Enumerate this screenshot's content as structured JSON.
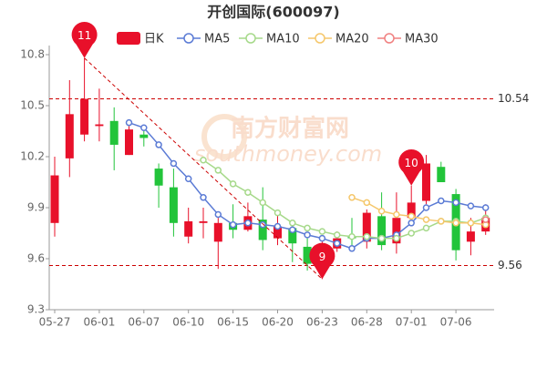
{
  "chart_data": {
    "type": "candlestick",
    "title": "开创国际(600097)",
    "watermark": [
      "南方财富网",
      "southmoney.com"
    ],
    "categories": [
      "05-27",
      null,
      null,
      "06-01",
      null,
      null,
      "06-07",
      null,
      null,
      "06-10",
      null,
      null,
      "06-15",
      null,
      null,
      "06-20",
      null,
      null,
      "06-23",
      null,
      null,
      "06-28",
      null,
      null,
      "07-01",
      null,
      null,
      "07-06",
      null,
      null
    ],
    "series": [
      {
        "name": "日K",
        "type": "candlestick",
        "up_color": "#e8102a",
        "down_color": "#22c43a",
        "open": [
          9.81,
          10.19,
          10.33,
          10.38,
          10.41,
          10.21,
          10.33,
          10.13,
          10.02,
          9.73,
          9.81,
          9.7,
          9.81,
          9.77,
          9.83,
          9.72,
          9.78,
          9.67,
          9.59,
          9.66,
          9.73,
          9.7,
          9.85,
          9.69,
          9.84,
          9.94,
          10.14,
          9.98,
          9.7,
          9.76
        ],
        "high": [
          10.2,
          10.65,
          10.78,
          10.6,
          10.49,
          10.38,
          10.37,
          10.16,
          10.13,
          9.9,
          9.9,
          9.84,
          9.92,
          9.93,
          10.02,
          9.86,
          9.81,
          9.72,
          9.7,
          9.76,
          9.84,
          9.89,
          9.99,
          9.99,
          10.03,
          10.21,
          10.17,
          10.01,
          9.84,
          9.92
        ],
        "low": [
          9.73,
          10.08,
          10.29,
          10.29,
          10.12,
          10.21,
          10.26,
          9.9,
          9.73,
          9.69,
          9.72,
          9.54,
          9.72,
          9.76,
          9.65,
          9.68,
          9.58,
          9.53,
          9.48,
          9.64,
          9.65,
          9.66,
          9.65,
          9.63,
          9.79,
          9.92,
          10.05,
          9.59,
          9.62,
          9.74
        ],
        "close": [
          10.09,
          10.45,
          10.54,
          10.39,
          10.27,
          10.36,
          10.31,
          10.03,
          9.81,
          9.82,
          9.82,
          9.81,
          9.77,
          9.85,
          9.71,
          9.79,
          9.69,
          9.57,
          9.66,
          9.72,
          9.72,
          9.87,
          9.68,
          9.84,
          9.93,
          10.16,
          10.05,
          9.65,
          9.76,
          9.84
        ]
      },
      {
        "name": "MA5",
        "type": "line",
        "color": "#5b7bd5",
        "values": [
          null,
          null,
          null,
          null,
          null,
          10.4,
          10.37,
          10.27,
          10.16,
          10.07,
          9.96,
          9.86,
          9.8,
          9.81,
          9.8,
          9.79,
          9.77,
          9.74,
          9.72,
          9.69,
          9.66,
          9.72,
          9.72,
          9.74,
          9.81,
          9.9,
          9.94,
          9.93,
          9.91,
          9.9
        ]
      },
      {
        "name": "MA10",
        "type": "line",
        "color": "#a6d98a",
        "values": [
          null,
          null,
          null,
          null,
          null,
          null,
          null,
          null,
          null,
          null,
          10.18,
          10.12,
          10.04,
          9.99,
          9.93,
          9.87,
          9.81,
          9.78,
          9.76,
          9.74,
          9.73,
          9.73,
          9.72,
          9.72,
          9.75,
          9.78,
          9.82,
          9.82,
          9.81,
          9.84
        ]
      },
      {
        "name": "MA20",
        "type": "line",
        "color": "#f5c76b",
        "values": [
          null,
          null,
          null,
          null,
          null,
          null,
          null,
          null,
          null,
          null,
          null,
          null,
          null,
          null,
          null,
          null,
          null,
          null,
          null,
          null,
          9.96,
          9.93,
          9.88,
          9.86,
          9.85,
          9.83,
          9.82,
          9.81,
          9.81,
          9.8
        ]
      },
      {
        "name": "MA30",
        "type": "line",
        "color": "#f08080",
        "values": [
          null,
          null,
          null,
          null,
          null,
          null,
          null,
          null,
          null,
          null,
          null,
          null,
          null,
          null,
          null,
          null,
          null,
          null,
          null,
          null,
          null,
          null,
          null,
          null,
          null,
          null,
          null,
          null,
          null,
          9.83
        ]
      }
    ],
    "ylim": [
      9.3,
      10.8
    ],
    "yticks": [
      9.3,
      9.6,
      9.9,
      10.2,
      10.5,
      10.8
    ],
    "reference_lines": [
      10.54,
      9.56
    ],
    "markers": [
      {
        "label": "11",
        "value": 10.78
      },
      {
        "label": "9",
        "value": 9.48
      },
      {
        "label": "10",
        "value": 10.03
      }
    ]
  }
}
